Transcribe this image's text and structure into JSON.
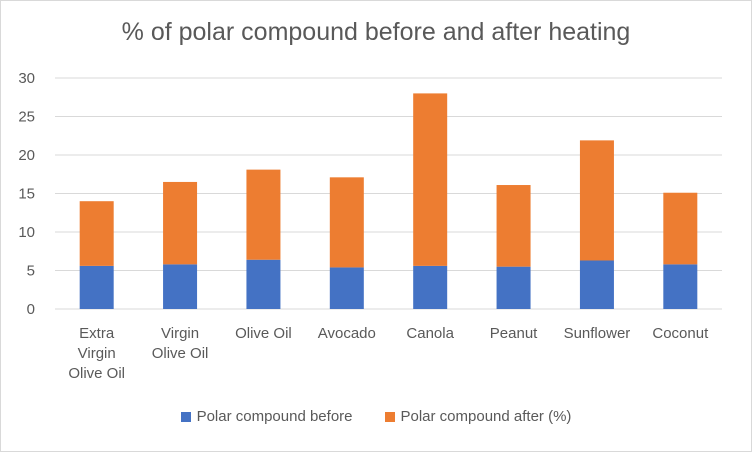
{
  "chart_data": {
    "type": "bar",
    "stacked": true,
    "title": "% of polar compound  before and after heating",
    "categories": [
      [
        "Extra",
        "Virgin",
        "Olive Oil"
      ],
      [
        "Virgin",
        "Olive Oil"
      ],
      [
        "Olive Oil"
      ],
      [
        "Avocado"
      ],
      [
        "Canola"
      ],
      [
        "Peanut"
      ],
      [
        "Sunflower"
      ],
      [
        "Coconut"
      ]
    ],
    "series": [
      {
        "name": "Polar compound before",
        "color": "#4472c4",
        "values": [
          5.6,
          5.8,
          6.4,
          5.4,
          5.6,
          5.5,
          6.3,
          5.8
        ]
      },
      {
        "name": "Polar compound after (%)",
        "color": "#ed7d31",
        "values": [
          8.4,
          10.7,
          11.7,
          11.7,
          22.4,
          10.6,
          15.6,
          9.3
        ]
      }
    ],
    "ylim": [
      0,
      30
    ],
    "yticks": [
      0,
      5,
      10,
      15,
      20,
      25,
      30
    ],
    "grid": true,
    "legend_position": "bottom"
  }
}
